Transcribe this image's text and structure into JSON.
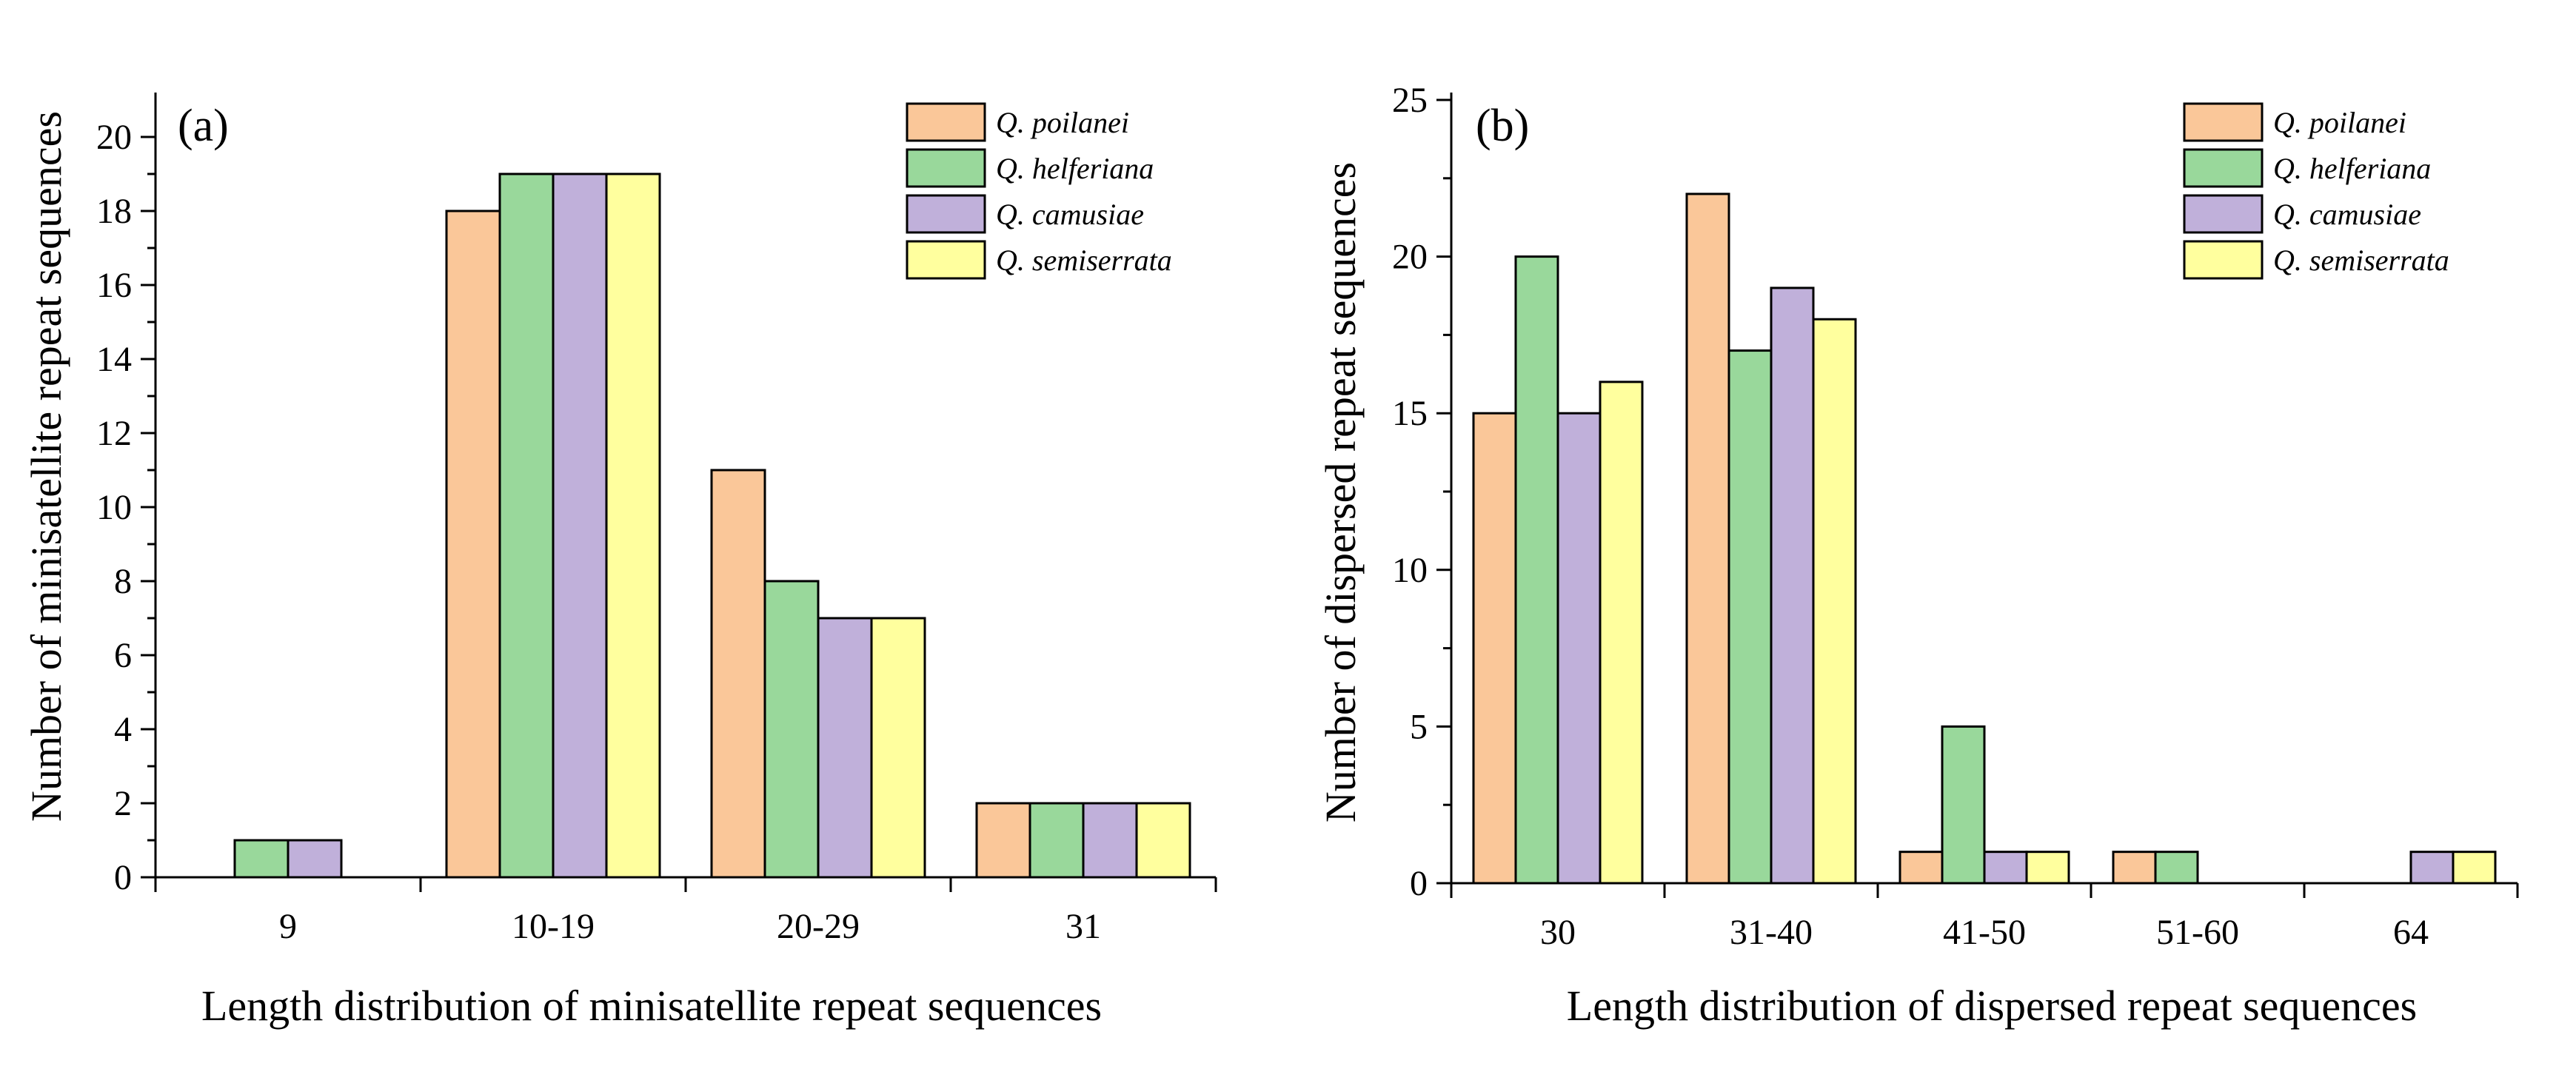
{
  "chart_data": [
    {
      "type": "bar",
      "panel_label": "(a)",
      "title": "",
      "xlabel": "Length distribution of minisatellite repeat sequences",
      "ylabel": "Number of minisatellite repeat sequences",
      "categories": [
        "9",
        "10-19",
        "20-29",
        "31"
      ],
      "ylim": [
        0,
        21
      ],
      "yticks": [
        0,
        2,
        4,
        6,
        8,
        10,
        12,
        14,
        16,
        18,
        20
      ],
      "series": [
        {
          "name": "Q. poilanei",
          "color": "#FAC799",
          "values": [
            0,
            18,
            11,
            2
          ]
        },
        {
          "name": "Q. helferiana",
          "color": "#99D89B",
          "values": [
            1,
            19,
            8,
            2
          ]
        },
        {
          "name": "Q. camusiae",
          "color": "#C0B0DA",
          "values": [
            1,
            19,
            7,
            2
          ]
        },
        {
          "name": "Q. semiserrata",
          "color": "#FFFF9E",
          "values": [
            0,
            19,
            7,
            2
          ]
        }
      ],
      "legend_position": "top-right",
      "grid": false
    },
    {
      "type": "bar",
      "panel_label": "(b)",
      "title": "",
      "xlabel": "Length distribution of dispersed repeat sequences",
      "ylabel": "Number of dispersed repeat sequences",
      "categories": [
        "30",
        "31-40",
        "41-50",
        "51-60",
        "64"
      ],
      "ylim": [
        0,
        25
      ],
      "yticks": [
        0,
        5,
        10,
        15,
        20,
        25
      ],
      "series": [
        {
          "name": "Q. poilanei",
          "color": "#FAC799",
          "values": [
            15,
            22,
            1,
            1,
            0
          ]
        },
        {
          "name": "Q. helferiana",
          "color": "#99D89B",
          "values": [
            20,
            17,
            5,
            1,
            0
          ]
        },
        {
          "name": "Q. camusiae",
          "color": "#C0B0DA",
          "values": [
            15,
            19,
            1,
            0,
            1
          ]
        },
        {
          "name": "Q. semiserrata",
          "color": "#FFFF9E",
          "values": [
            16,
            18,
            1,
            0,
            1
          ]
        }
      ],
      "legend_position": "top-right",
      "grid": false
    }
  ]
}
